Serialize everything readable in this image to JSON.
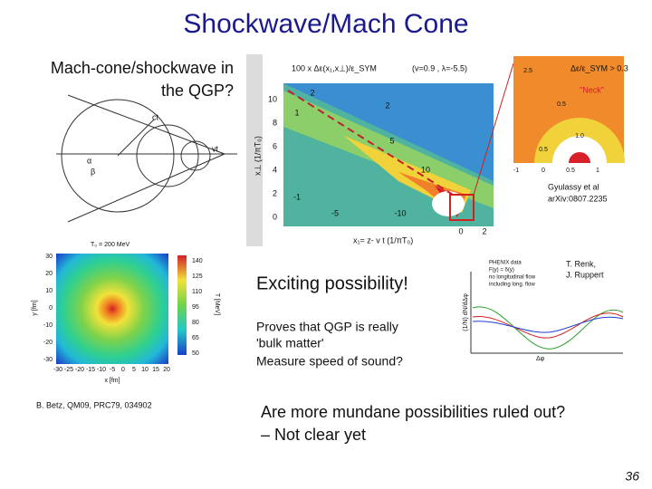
{
  "title": "Shockwave/Mach Cone",
  "left_caption": [
    "Mach-cone/shockwave in",
    "the QGP?"
  ],
  "cone_diagram": {
    "labels": [
      "ct",
      "vt",
      "α",
      "β"
    ]
  },
  "contour_plot": {
    "title": "100 x Δε(x₁,x⊥)/ε_SYM",
    "params": "(v=0.9 , λ=-5.5)",
    "x_label": "x₁= z- v t  (1/πT₀)",
    "y_label": "x⊥ (1/πT₀)",
    "yticks": [
      "0",
      "2",
      "4",
      "6",
      "8",
      "10"
    ],
    "xticks": [
      "0",
      "2"
    ],
    "contour_labels": [
      "2",
      "2",
      "5",
      "10",
      "1",
      "-1",
      "-5",
      "-10"
    ],
    "inset": {
      "label": "\"Neck\"",
      "ratio": "Δε/ε_SYM > 0.3",
      "contour_labels": [
        "2.5",
        "0.5",
        "1.0",
        "0.5"
      ],
      "xticks": [
        "-1",
        "0",
        "0.5",
        "1"
      ]
    },
    "citation": [
      "Gyulassy et al",
      "arXiv:0807.2235"
    ]
  },
  "heatmap": {
    "title": "T₀ = 200 MeV",
    "x_label": "x [fm]",
    "y_label": "y [fm]",
    "yticks": [
      "30",
      "20",
      "10",
      "0",
      "-10",
      "-20",
      "-30"
    ],
    "xticks": [
      "-30",
      "-25",
      "-20",
      "-15",
      "-10",
      "-5",
      "0",
      "5",
      "10",
      "15",
      "20"
    ],
    "colorbar_ticks": [
      "140",
      "125",
      "110",
      "95",
      "80",
      "65",
      "50"
    ],
    "colorbar_label": "T [MeV]",
    "citation": "B. Betz, QM09, PRC79, 034902"
  },
  "exciting": "Exciting possibility!",
  "renk_plot": {
    "authors": [
      "T. Renk,",
      "J. Ruppert"
    ],
    "legend": [
      "PHENIX data",
      "F(y) = δ(y)",
      "no longitudinal flow",
      "including long. flow"
    ],
    "y_label": "(1/N) dN/dΔφ",
    "x_label": "Δφ"
  },
  "proves": [
    "Proves that QGP is really",
    "'bulk matter'",
    "Measure speed of sound?"
  ],
  "question": [
    "Are more mundane possibilities ruled out?",
    "– Not clear yet"
  ],
  "page_number": "36"
}
